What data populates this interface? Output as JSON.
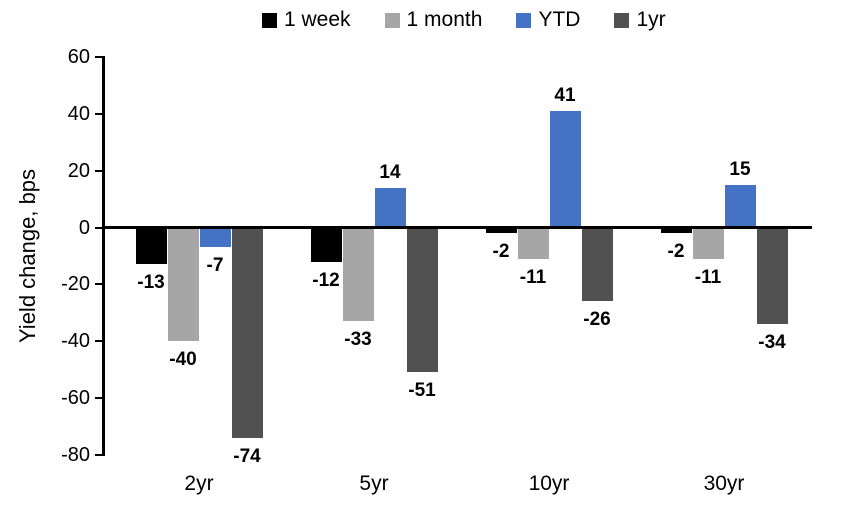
{
  "chart_data": {
    "type": "bar",
    "title": "",
    "categories": [
      "2yr",
      "5yr",
      "10yr",
      "30yr"
    ],
    "series": [
      {
        "name": "1 week",
        "color": "#000000",
        "values": [
          -13,
          -12,
          -2,
          -2
        ]
      },
      {
        "name": "1 month",
        "color": "#A6A6A6",
        "values": [
          -40,
          -33,
          -11,
          -11
        ]
      },
      {
        "name": "YTD",
        "color": "#4472C4",
        "values": [
          -7,
          14,
          41,
          15
        ]
      },
      {
        "name": "1yr",
        "color": "#515151",
        "values": [
          -74,
          -51,
          -26,
          -34
        ]
      }
    ],
    "xlabel": "",
    "ylabel": "Yield change, bps",
    "ylim": [
      -80,
      60
    ],
    "yticks": [
      60,
      40,
      20,
      0,
      -20,
      -40,
      -60,
      -80
    ],
    "legend_position": "top-center",
    "grid": false,
    "data_labels": "outside-end",
    "axis_color": "#000000"
  }
}
